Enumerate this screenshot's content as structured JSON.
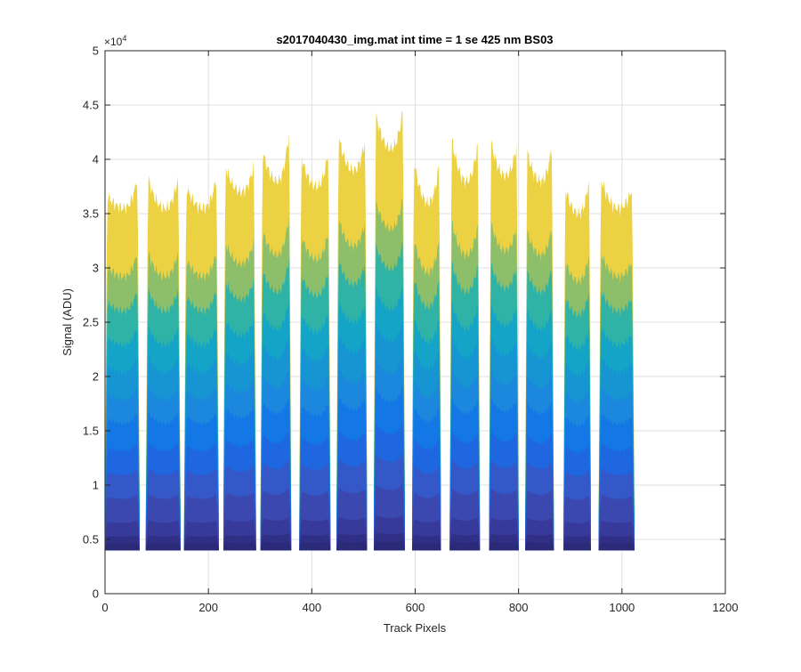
{
  "chart_data": {
    "type": "area",
    "title": "s2017040430_img.mat int time = 1 se  425 nm BS03",
    "xlabel": "Track Pixels",
    "ylabel": "Signal (ADU)",
    "exponent_base": "×10",
    "exponent_power": "4",
    "xlim": [
      0,
      1200
    ],
    "ylim": [
      0,
      50000
    ],
    "xticks": [
      0,
      200,
      400,
      600,
      800,
      1000,
      1200
    ],
    "xtick_labels": [
      "0",
      "200",
      "400",
      "600",
      "800",
      "1000",
      "1200"
    ],
    "yticks": [
      0,
      5000,
      10000,
      15000,
      20000,
      25000,
      30000,
      35000,
      40000,
      45000,
      50000
    ],
    "ytick_labels": [
      "0",
      "0.5",
      "1",
      "1.5",
      "2",
      "2.5",
      "3",
      "3.5",
      "4",
      "4.5",
      "5"
    ],
    "grid": true,
    "x_range": [
      0,
      1024
    ],
    "baseline": 4000,
    "tracks": [
      {
        "x_start": 0,
        "x_end": 67,
        "left_edge": 37000,
        "min": 35500,
        "right_edge": 39500
      },
      {
        "x_start": 79,
        "x_end": 146,
        "left_edge": 39000,
        "min": 35500,
        "right_edge": 39500
      },
      {
        "x_start": 153,
        "x_end": 220,
        "left_edge": 38000,
        "min": 35500,
        "right_edge": 39500
      },
      {
        "x_start": 229,
        "x_end": 292,
        "left_edge": 40000,
        "min": 37000,
        "right_edge": 40500
      },
      {
        "x_start": 301,
        "x_end": 360,
        "left_edge": 41500,
        "min": 38000,
        "right_edge": 44500
      },
      {
        "x_start": 376,
        "x_end": 436,
        "left_edge": 41000,
        "min": 37500,
        "right_edge": 42000
      },
      {
        "x_start": 448,
        "x_end": 507,
        "left_edge": 43000,
        "min": 39000,
        "right_edge": 43000
      },
      {
        "x_start": 520,
        "x_end": 580,
        "left_edge": 45000,
        "min": 41000,
        "right_edge": 46000
      },
      {
        "x_start": 594,
        "x_end": 650,
        "left_edge": 41000,
        "min": 36000,
        "right_edge": 41000
      },
      {
        "x_start": 667,
        "x_end": 725,
        "left_edge": 43000,
        "min": 38000,
        "right_edge": 43000
      },
      {
        "x_start": 743,
        "x_end": 800,
        "left_edge": 42500,
        "min": 38500,
        "right_edge": 42500
      },
      {
        "x_start": 813,
        "x_end": 868,
        "left_edge": 41500,
        "min": 38000,
        "right_edge": 42500
      },
      {
        "x_start": 887,
        "x_end": 940,
        "left_edge": 38000,
        "min": 35000,
        "right_edge": 39500
      },
      {
        "x_start": 955,
        "x_end": 1024,
        "left_edge": 39000,
        "min": 35500,
        "right_edge": 38000
      }
    ],
    "layer_fractions": [
      1.0,
      0.8,
      0.7,
      0.6,
      0.52,
      0.44,
      0.37,
      0.29,
      0.22,
      0.15,
      0.08,
      0.04,
      0.02
    ],
    "layer_colors": [
      "#ecd143",
      "#8dbe6a",
      "#2fb3a6",
      "#14a4c8",
      "#1695d2",
      "#1b87dd",
      "#1477e6",
      "#1e67e0",
      "#3458c8",
      "#3a48b0",
      "#373a9a",
      "#302f86",
      "#2a2a78"
    ]
  }
}
